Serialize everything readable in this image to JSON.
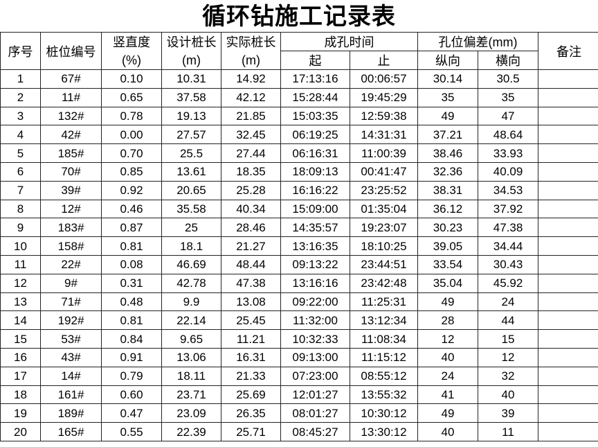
{
  "title": "循环钻施工记录表",
  "headers": {
    "index": "序号",
    "pile_no": "桩位编号",
    "verticality": "竖直度",
    "verticality_unit": "(%)",
    "design_length": "设计桩长",
    "design_length_unit": "(m)",
    "actual_length": "实际桩长",
    "actual_length_unit": "(m)",
    "drill_time": "成孔时间",
    "start": "起",
    "end": "止",
    "deviation": "孔位偏差(mm)",
    "longitudinal": "纵向",
    "transverse": "横向",
    "remarks": "备注"
  },
  "rows": [
    [
      "1",
      "67#",
      "0.10",
      "10.31",
      "14.92",
      "17:13:16",
      "00:06:57",
      "30.14",
      "30.5",
      ""
    ],
    [
      "2",
      "11#",
      "0.65",
      "37.58",
      "42.12",
      "15:28:44",
      "19:45:29",
      "35",
      "35",
      ""
    ],
    [
      "3",
      "132#",
      "0.78",
      "19.13",
      "21.85",
      "15:03:35",
      "12:59:38",
      "49",
      "47",
      ""
    ],
    [
      "4",
      "42#",
      "0.00",
      "27.57",
      "32.45",
      "06:19:25",
      "14:31:31",
      "37.21",
      "48.64",
      ""
    ],
    [
      "5",
      "185#",
      "0.70",
      "25.5",
      "27.44",
      "06:16:31",
      "11:00:39",
      "38.46",
      "33.93",
      ""
    ],
    [
      "6",
      "70#",
      "0.85",
      "13.61",
      "18.35",
      "18:09:13",
      "00:41:47",
      "32.36",
      "40.09",
      ""
    ],
    [
      "7",
      "39#",
      "0.92",
      "20.65",
      "25.28",
      "16:16:22",
      "23:25:52",
      "38.31",
      "34.53",
      ""
    ],
    [
      "8",
      "12#",
      "0.46",
      "35.58",
      "40.34",
      "15:09:00",
      "01:35:04",
      "36.12",
      "37.92",
      ""
    ],
    [
      "9",
      "183#",
      "0.87",
      "25",
      "28.46",
      "14:35:57",
      "19:23:07",
      "30.23",
      "47.38",
      ""
    ],
    [
      "10",
      "158#",
      "0.81",
      "18.1",
      "21.27",
      "13:16:35",
      "18:10:25",
      "39.05",
      "34.44",
      ""
    ],
    [
      "11",
      "22#",
      "0.08",
      "46.69",
      "48.44",
      "09:13:22",
      "23:44:51",
      "33.54",
      "30.43",
      ""
    ],
    [
      "12",
      "9#",
      "0.31",
      "42.78",
      "47.38",
      "13:16:16",
      "23:42:48",
      "35.04",
      "45.92",
      ""
    ],
    [
      "13",
      "71#",
      "0.48",
      "9.9",
      "13.08",
      "09:22:00",
      "11:25:31",
      "49",
      "24",
      ""
    ],
    [
      "14",
      "192#",
      "0.81",
      "22.14",
      "25.45",
      "11:32:00",
      "13:12:34",
      "28",
      "44",
      ""
    ],
    [
      "15",
      "53#",
      "0.84",
      "9.65",
      "11.21",
      "10:32:33",
      "11:08:34",
      "12",
      "15",
      ""
    ],
    [
      "16",
      "43#",
      "0.91",
      "13.06",
      "16.31",
      "09:13:00",
      "11:15:12",
      "40",
      "12",
      ""
    ],
    [
      "17",
      "14#",
      "0.79",
      "18.11",
      "21.33",
      "07:23:00",
      "08:55:12",
      "24",
      "32",
      ""
    ],
    [
      "18",
      "161#",
      "0.60",
      "23.71",
      "25.69",
      "12:01:27",
      "13:55:32",
      "41",
      "40",
      ""
    ],
    [
      "19",
      "189#",
      "0.47",
      "23.09",
      "26.35",
      "08:01:27",
      "10:30:12",
      "49",
      "39",
      ""
    ],
    [
      "20",
      "165#",
      "0.55",
      "22.39",
      "25.71",
      "08:45:27",
      "13:30:12",
      "40",
      "11",
      ""
    ]
  ]
}
